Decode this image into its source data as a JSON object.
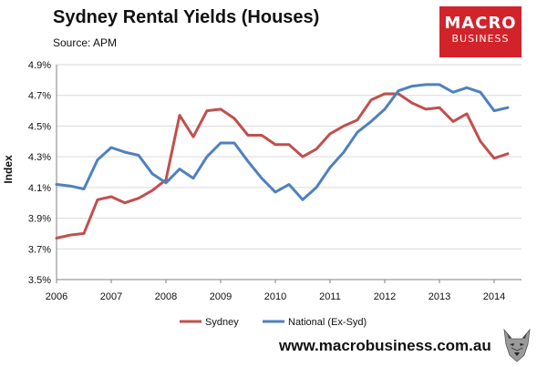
{
  "header": {
    "title": "Sydney Rental Yields (Houses)",
    "subtitle": "Source: APM"
  },
  "logo": {
    "line1": "MACRO",
    "line2": "BUSINESS",
    "color": "#d2232a"
  },
  "footer": {
    "url": "www.macrobusiness.com.au",
    "mascot_icon": "wolf-head-icon"
  },
  "chart_data": {
    "type": "line",
    "title": "Sydney Rental Yields (Houses)",
    "subtitle": "Source: APM",
    "xlabel": "",
    "ylabel": "Index",
    "x_tick_labels": [
      "2006",
      "2007",
      "2008",
      "2009",
      "2010",
      "2011",
      "2012",
      "2013",
      "2014"
    ],
    "y_tick_labels": [
      "3.5%",
      "3.7%",
      "3.9%",
      "4.1%",
      "4.3%",
      "4.5%",
      "4.7%",
      "4.9%"
    ],
    "ylim": [
      3.5,
      4.9
    ],
    "xlim": [
      2006.0,
      2014.5
    ],
    "grid": true,
    "legend_position": "bottom",
    "series": [
      {
        "name": "Sydney",
        "color": "#c0504d",
        "x": [
          2006.0,
          2006.25,
          2006.5,
          2006.75,
          2007.0,
          2007.25,
          2007.5,
          2007.75,
          2008.0,
          2008.25,
          2008.5,
          2008.75,
          2009.0,
          2009.25,
          2009.5,
          2009.75,
          2010.0,
          2010.25,
          2010.5,
          2010.75,
          2011.0,
          2011.25,
          2011.5,
          2011.75,
          2012.0,
          2012.25,
          2012.5,
          2012.75,
          2013.0,
          2013.25,
          2013.5,
          2013.75,
          2014.0,
          2014.25
        ],
        "values": [
          3.77,
          3.79,
          3.8,
          4.02,
          4.04,
          4.0,
          4.03,
          4.08,
          4.15,
          4.57,
          4.43,
          4.6,
          4.61,
          4.55,
          4.44,
          4.44,
          4.38,
          4.38,
          4.3,
          4.35,
          4.45,
          4.5,
          4.54,
          4.67,
          4.71,
          4.71,
          4.65,
          4.61,
          4.62,
          4.53,
          4.58,
          4.4,
          4.29,
          4.32
        ]
      },
      {
        "name": "National (Ex-Syd)",
        "color": "#4f81bd",
        "x": [
          2006.0,
          2006.25,
          2006.5,
          2006.75,
          2007.0,
          2007.25,
          2007.5,
          2007.75,
          2008.0,
          2008.25,
          2008.5,
          2008.75,
          2009.0,
          2009.25,
          2009.5,
          2009.75,
          2010.0,
          2010.25,
          2010.5,
          2010.75,
          2011.0,
          2011.25,
          2011.5,
          2011.75,
          2012.0,
          2012.25,
          2012.5,
          2012.75,
          2013.0,
          2013.25,
          2013.5,
          2013.75,
          2014.0,
          2014.25
        ],
        "values": [
          4.12,
          4.11,
          4.09,
          4.28,
          4.36,
          4.33,
          4.31,
          4.19,
          4.13,
          4.22,
          4.16,
          4.3,
          4.39,
          4.39,
          4.27,
          4.16,
          4.07,
          4.12,
          4.02,
          4.1,
          4.23,
          4.33,
          4.46,
          4.53,
          4.61,
          4.73,
          4.76,
          4.77,
          4.77,
          4.72,
          4.75,
          4.72,
          4.6,
          4.62
        ]
      }
    ]
  }
}
